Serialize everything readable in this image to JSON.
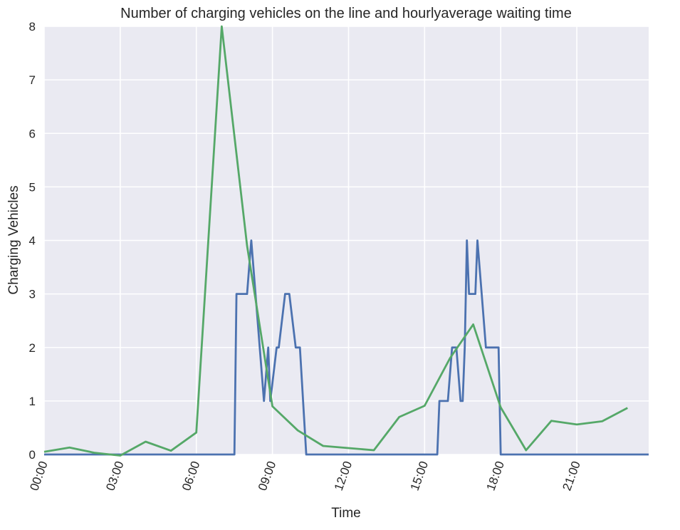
{
  "chart_data": {
    "type": "line",
    "title": "Number of charging vehicles on the line and hourlyaverage waiting time",
    "xlabel": "Time",
    "ylabel": "Charging Vehicles",
    "xlim": [
      "00:00",
      "23:50"
    ],
    "ylim": [
      0,
      8
    ],
    "x_ticks": [
      "00:00",
      "03:00",
      "06:00",
      "09:00",
      "12:00",
      "15:00",
      "18:00",
      "21:00"
    ],
    "y_ticks": [
      0,
      1,
      2,
      3,
      4,
      5,
      6,
      7,
      8
    ],
    "grid": true,
    "background_color": "#eaeaf2",
    "grid_color": "#ffffff",
    "series": [
      {
        "color": "#4c72b0",
        "x": [
          "00:00",
          "07:30",
          "07:35",
          "07:55",
          "08:00",
          "08:05",
          "08:10",
          "08:40",
          "08:50",
          "08:55",
          "09:10",
          "09:15",
          "09:30",
          "09:40",
          "09:55",
          "10:00",
          "10:05",
          "10:20",
          "15:30",
          "15:35",
          "15:50",
          "15:55",
          "16:05",
          "16:10",
          "16:15",
          "16:25",
          "16:30",
          "16:35",
          "16:40",
          "16:45",
          "16:55",
          "16:57",
          "17:00",
          "17:05",
          "17:15",
          "17:25",
          "17:30",
          "17:45",
          "17:55",
          "18:00",
          "18:05",
          "23:50"
        ],
        "values": [
          0,
          0,
          3,
          3,
          3,
          3.5,
          4,
          1,
          2,
          1,
          2,
          2,
          3,
          3,
          2,
          2,
          2,
          0,
          0,
          1,
          1,
          1,
          2,
          2,
          2,
          1,
          1,
          2,
          4,
          3,
          3,
          3,
          3,
          4,
          3,
          2,
          2,
          2,
          2,
          0,
          0,
          0
        ]
      },
      {
        "color": "#55a868",
        "x": [
          "00:00",
          "01:00",
          "02:00",
          "03:00",
          "04:00",
          "05:00",
          "06:00",
          "07:00",
          "08:00",
          "09:00",
          "10:00",
          "11:00",
          "12:00",
          "13:00",
          "14:00",
          "15:00",
          "16:00",
          "16:55",
          "18:00",
          "19:00",
          "20:00",
          "21:00",
          "22:00",
          "23:00"
        ],
        "values": [
          0.05,
          0.13,
          0.03,
          -0.02,
          0.24,
          0.07,
          0.41,
          8.0,
          3.9,
          0.9,
          0.45,
          0.16,
          0.12,
          0.08,
          0.7,
          0.91,
          1.8,
          2.43,
          0.88,
          0.08,
          0.63,
          0.56,
          0.62,
          0.87
        ]
      }
    ]
  }
}
